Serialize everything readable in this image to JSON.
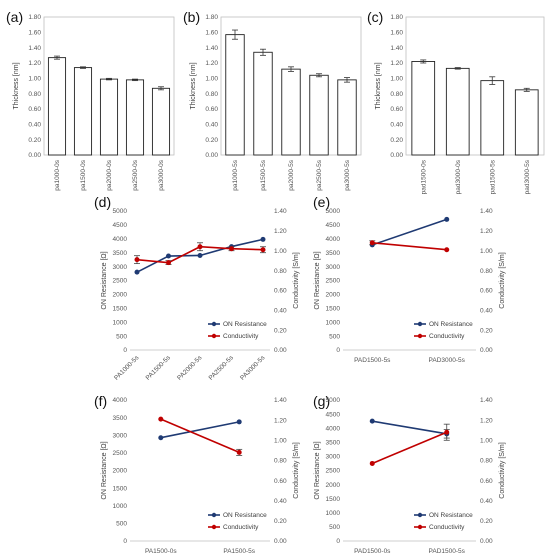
{
  "chart_data": [
    {
      "panel": "(a)",
      "type": "bar",
      "ylabel": "Thickness [nm]",
      "ylim": [
        0,
        1.8
      ],
      "yticks": [
        "0.00",
        "0.20",
        "0.40",
        "0.60",
        "0.80",
        "1.00",
        "1.20",
        "1.40",
        "1.60",
        "1.80"
      ],
      "categories": [
        "pa1000-0s",
        "pa1500-0s",
        "pa2000-0s",
        "pa2500-0s",
        "pa3000-0s"
      ],
      "values": [
        1.27,
        1.14,
        0.99,
        0.98,
        0.87
      ],
      "errors": [
        0.02,
        0.01,
        0.01,
        0.01,
        0.02
      ]
    },
    {
      "panel": "(b)",
      "type": "bar",
      "ylabel": "Thickness [nm]",
      "ylim": [
        0,
        1.8
      ],
      "yticks": [
        "0.00",
        "0.20",
        "0.40",
        "0.60",
        "0.80",
        "1.00",
        "1.20",
        "1.40",
        "1.60",
        "1.80"
      ],
      "categories": [
        "pa1000-5s",
        "pa1500-5s",
        "pa2000-5s",
        "pa2500-5s",
        "pa3000-5s"
      ],
      "values": [
        1.57,
        1.34,
        1.12,
        1.04,
        0.98
      ],
      "errors": [
        0.06,
        0.04,
        0.03,
        0.02,
        0.03
      ]
    },
    {
      "panel": "(c)",
      "type": "bar",
      "ylabel": "Thickness [nm]",
      "ylim": [
        0,
        1.8
      ],
      "yticks": [
        "0.00",
        "0.20",
        "0.40",
        "0.60",
        "0.80",
        "1.00",
        "1.20",
        "1.40",
        "1.60",
        "1.80"
      ],
      "categories": [
        "pad1500-0s",
        "pad3000-0s",
        "pad1500-5s",
        "pad3000-5s"
      ],
      "values": [
        1.22,
        1.13,
        0.97,
        0.85
      ],
      "errors": [
        0.02,
        0.01,
        0.05,
        0.02
      ]
    },
    {
      "panel": "(d)",
      "type": "line",
      "ylabel": "ON Resistance [Ω]",
      "y2label": "Conductivity [S/m]",
      "ylim": [
        0,
        5000
      ],
      "y2lim": [
        0,
        1.4
      ],
      "yticks": [
        "0",
        "500",
        "1000",
        "1500",
        "2000",
        "2500",
        "3000",
        "3500",
        "4000",
        "4500",
        "5000"
      ],
      "y2ticks": [
        "0.00",
        "0.20",
        "0.40",
        "0.60",
        "0.80",
        "1.00",
        "1.20",
        "1.40"
      ],
      "categories": [
        "PA1000-5s",
        "PA1500-5s",
        "PA2000-5s",
        "PA2500-5s",
        "PA3000-5s"
      ],
      "series": [
        {
          "name": "ON Resistance",
          "axis": "left",
          "color": "#1f3a73",
          "values": [
            2800,
            3380,
            3400,
            3720,
            3980
          ],
          "errors": [
            0,
            0,
            0,
            0,
            0
          ]
        },
        {
          "name": "Conductivity",
          "axis": "right",
          "color": "#c00000",
          "values": [
            0.91,
            0.88,
            1.04,
            1.02,
            1.01
          ],
          "errors": [
            0.04,
            0.02,
            0.04,
            0.02,
            0.03
          ]
        }
      ]
    },
    {
      "panel": "(e)",
      "type": "line",
      "ylabel": "ON Resistance [Ω]",
      "y2label": "Conductivity [S/m]",
      "ylim": [
        0,
        5000
      ],
      "y2lim": [
        0,
        1.4
      ],
      "yticks": [
        "0",
        "500",
        "1000",
        "1500",
        "2000",
        "2500",
        "3000",
        "3500",
        "4000",
        "4500",
        "5000"
      ],
      "y2ticks": [
        "0.00",
        "0.20",
        "0.40",
        "0.60",
        "0.80",
        "1.00",
        "1.20",
        "1.40"
      ],
      "categories": [
        "PAD1500-5s",
        "PAD3000-5s"
      ],
      "series": [
        {
          "name": "ON Resistance",
          "axis": "left",
          "color": "#1f3a73",
          "values": [
            3780,
            4700
          ],
          "errors": [
            0,
            0
          ]
        },
        {
          "name": "Conductivity",
          "axis": "right",
          "color": "#c00000",
          "values": [
            1.08,
            1.01
          ],
          "errors": [
            0.02,
            0
          ]
        }
      ]
    },
    {
      "panel": "(f)",
      "type": "line",
      "ylabel": "ON Resistance [Ω]",
      "y2label": "Conductivity [S/m]",
      "ylim": [
        0,
        4000
      ],
      "y2lim": [
        0,
        1.4
      ],
      "yticks": [
        "0",
        "500",
        "1000",
        "1500",
        "2000",
        "2500",
        "3000",
        "3500",
        "4000"
      ],
      "y2ticks": [
        "0.00",
        "0.20",
        "0.40",
        "0.60",
        "0.80",
        "1.00",
        "1.20",
        "1.40"
      ],
      "categories": [
        "PA1500-0s",
        "PA1500-5s"
      ],
      "series": [
        {
          "name": "ON Resistance",
          "axis": "left",
          "color": "#1f3a73",
          "values": [
            2930,
            3380
          ],
          "errors": [
            0,
            0
          ]
        },
        {
          "name": "Conductivity",
          "axis": "right",
          "color": "#c00000",
          "values": [
            1.21,
            0.88
          ],
          "errors": [
            0,
            0.03
          ]
        }
      ]
    },
    {
      "panel": "(g)",
      "type": "line",
      "ylabel": "ON Resistance [Ω]",
      "y2label": "Conductivity [S/m]",
      "ylim": [
        0,
        5000
      ],
      "y2lim": [
        0,
        1.4
      ],
      "yticks": [
        "0",
        "500",
        "1000",
        "1500",
        "2000",
        "2500",
        "3000",
        "3500",
        "4000",
        "4500",
        "5000"
      ],
      "y2ticks": [
        "0.00",
        "0.20",
        "0.40",
        "0.60",
        "0.80",
        "1.00",
        "1.20",
        "1.40"
      ],
      "categories": [
        "PAD1500-0s",
        "PAD1500-5s"
      ],
      "series": [
        {
          "name": "ON Resistance",
          "axis": "left",
          "color": "#1f3a73",
          "values": [
            4250,
            3800
          ],
          "errors": [
            0,
            150
          ]
        },
        {
          "name": "Conductivity",
          "axis": "right",
          "color": "#c00000",
          "values": [
            0.77,
            1.08
          ],
          "errors": [
            0,
            0.08
          ]
        }
      ]
    }
  ]
}
